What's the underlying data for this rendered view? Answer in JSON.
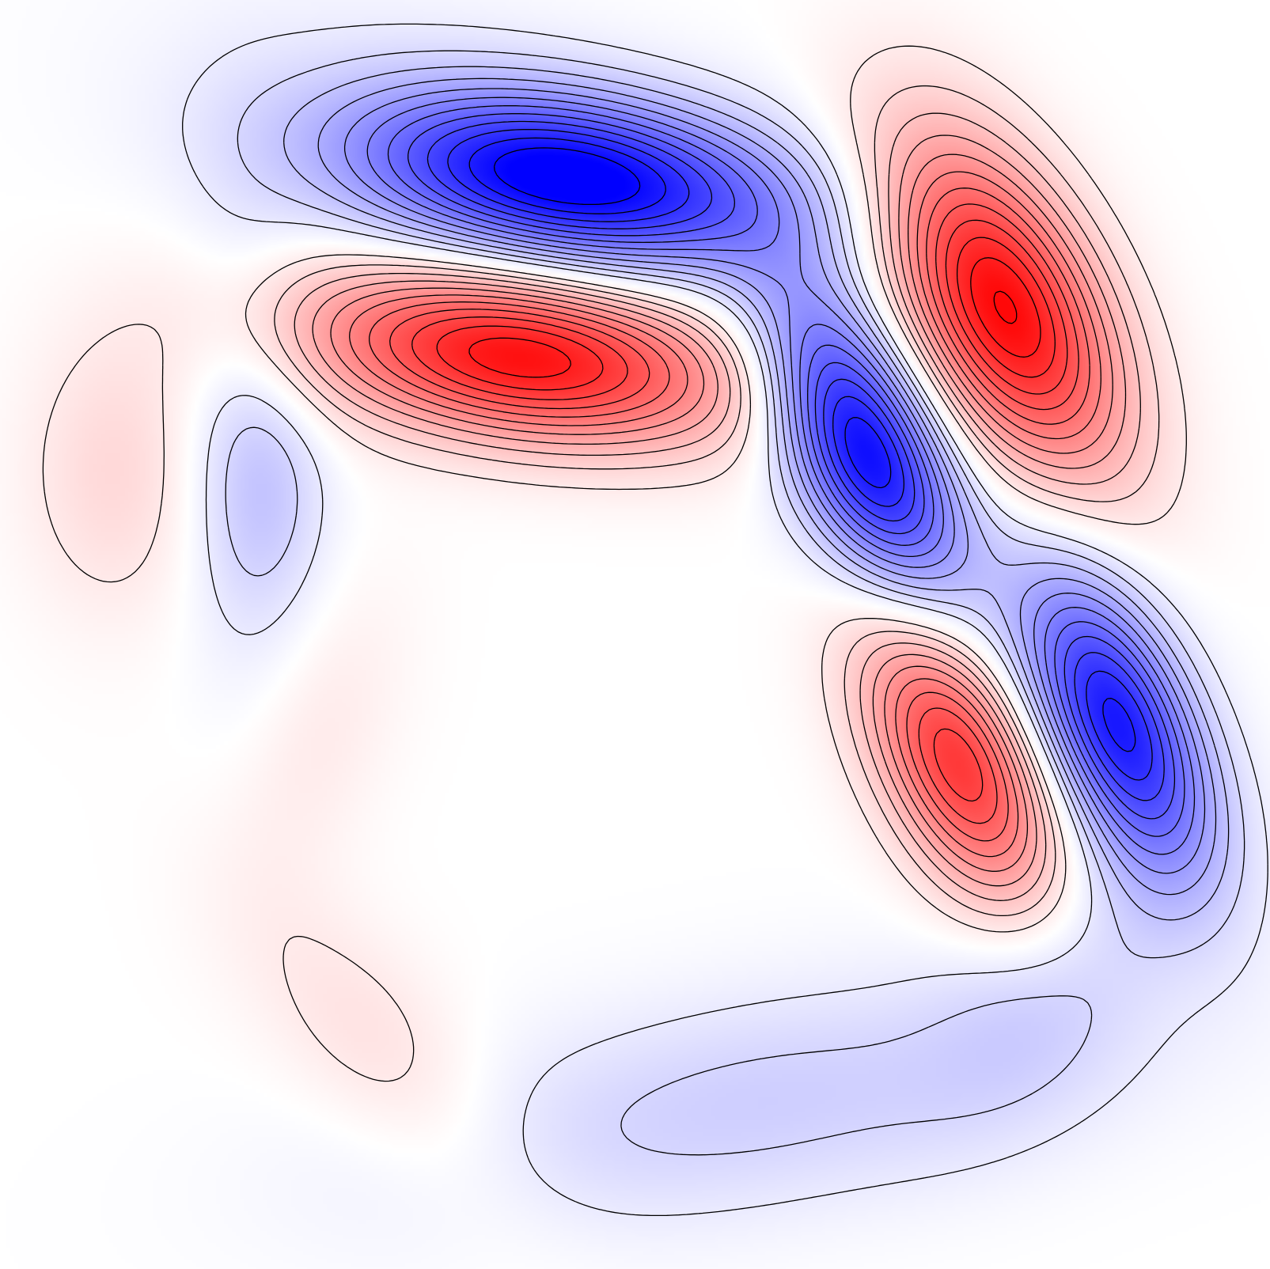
{
  "chart_data": {
    "type": "heatmap",
    "subtype": "filled-contour",
    "title": "",
    "xlabel": "",
    "ylabel": "",
    "axes_visible": false,
    "grid": false,
    "legend": "none",
    "colormap": {
      "negative": "#0000ff",
      "zero": "#ffffff",
      "positive": "#ff0000"
    },
    "contour_line_color": "#000000",
    "value_range": [
      -1,
      1
    ],
    "contour_levels_per_sign": 12,
    "contour_step": 0.08,
    "lobes": [
      {
        "id": "blue-top",
        "sign": -1,
        "peak": 1.0,
        "center": [
          0.45,
          0.86
        ],
        "sigma": [
          0.12,
          0.045
        ],
        "angle": -8
      },
      {
        "id": "red-upper-middle",
        "sign": 1,
        "peak": 0.96,
        "center": [
          0.41,
          0.72
        ],
        "sigma": [
          0.12,
          0.045
        ],
        "angle": -8
      },
      {
        "id": "red-upper-right",
        "sign": 1,
        "peak": 0.98,
        "center": [
          0.79,
          0.76
        ],
        "sigma": [
          0.1,
          0.05
        ],
        "angle": -62
      },
      {
        "id": "blue-center-right",
        "sign": -1,
        "peak": 1.0,
        "center": [
          0.68,
          0.65
        ],
        "sigma": [
          0.09,
          0.04
        ],
        "angle": -64
      },
      {
        "id": "red-lower-right",
        "sign": 1,
        "peak": 0.79,
        "center": [
          0.755,
          0.4
        ],
        "sigma": [
          0.085,
          0.04
        ],
        "angle": -64
      },
      {
        "id": "blue-lower-right",
        "sign": -1,
        "peak": 0.91,
        "center": [
          0.88,
          0.43
        ],
        "sigma": [
          0.09,
          0.04
        ],
        "angle": -66
      },
      {
        "id": "blue-bottom-band",
        "sign": -1,
        "peak": 0.19,
        "center": [
          0.6,
          0.13
        ],
        "sigma": [
          0.2,
          0.06
        ],
        "angle": 10
      },
      {
        "id": "blue-lower-right-tail",
        "sign": -1,
        "peak": 0.14,
        "center": [
          0.84,
          0.23
        ],
        "sigma": [
          0.09,
          0.05
        ],
        "angle": 50
      },
      {
        "id": "blue-left-band",
        "sign": -1,
        "peak": 0.1,
        "center": [
          0.19,
          0.66
        ],
        "sigma": [
          0.035,
          0.14
        ],
        "angle": 0
      },
      {
        "id": "blue-left-small",
        "sign": -1,
        "peak": 0.16,
        "center": [
          0.21,
          0.61
        ],
        "sigma": [
          0.035,
          0.07
        ],
        "angle": 0
      },
      {
        "id": "blue-top-halo",
        "sign": -1,
        "peak": 0.09,
        "center": [
          0.36,
          0.87
        ],
        "sigma": [
          0.17,
          0.08
        ],
        "angle": -20
      },
      {
        "id": "red-left-oval",
        "sign": 1,
        "peak": 0.15,
        "center": [
          0.09,
          0.63
        ],
        "sigma": [
          0.05,
          0.08
        ],
        "angle": 0
      },
      {
        "id": "red-left-blob",
        "sign": 1,
        "peak": 0.08,
        "center": [
          0.25,
          0.42
        ],
        "sigma": [
          0.04,
          0.09
        ],
        "angle": -20
      },
      {
        "id": "red-lower-left",
        "sign": 1,
        "peak": 0.12,
        "center": [
          0.3,
          0.17
        ],
        "sigma": [
          0.11,
          0.045
        ],
        "angle": -50
      }
    ]
  }
}
